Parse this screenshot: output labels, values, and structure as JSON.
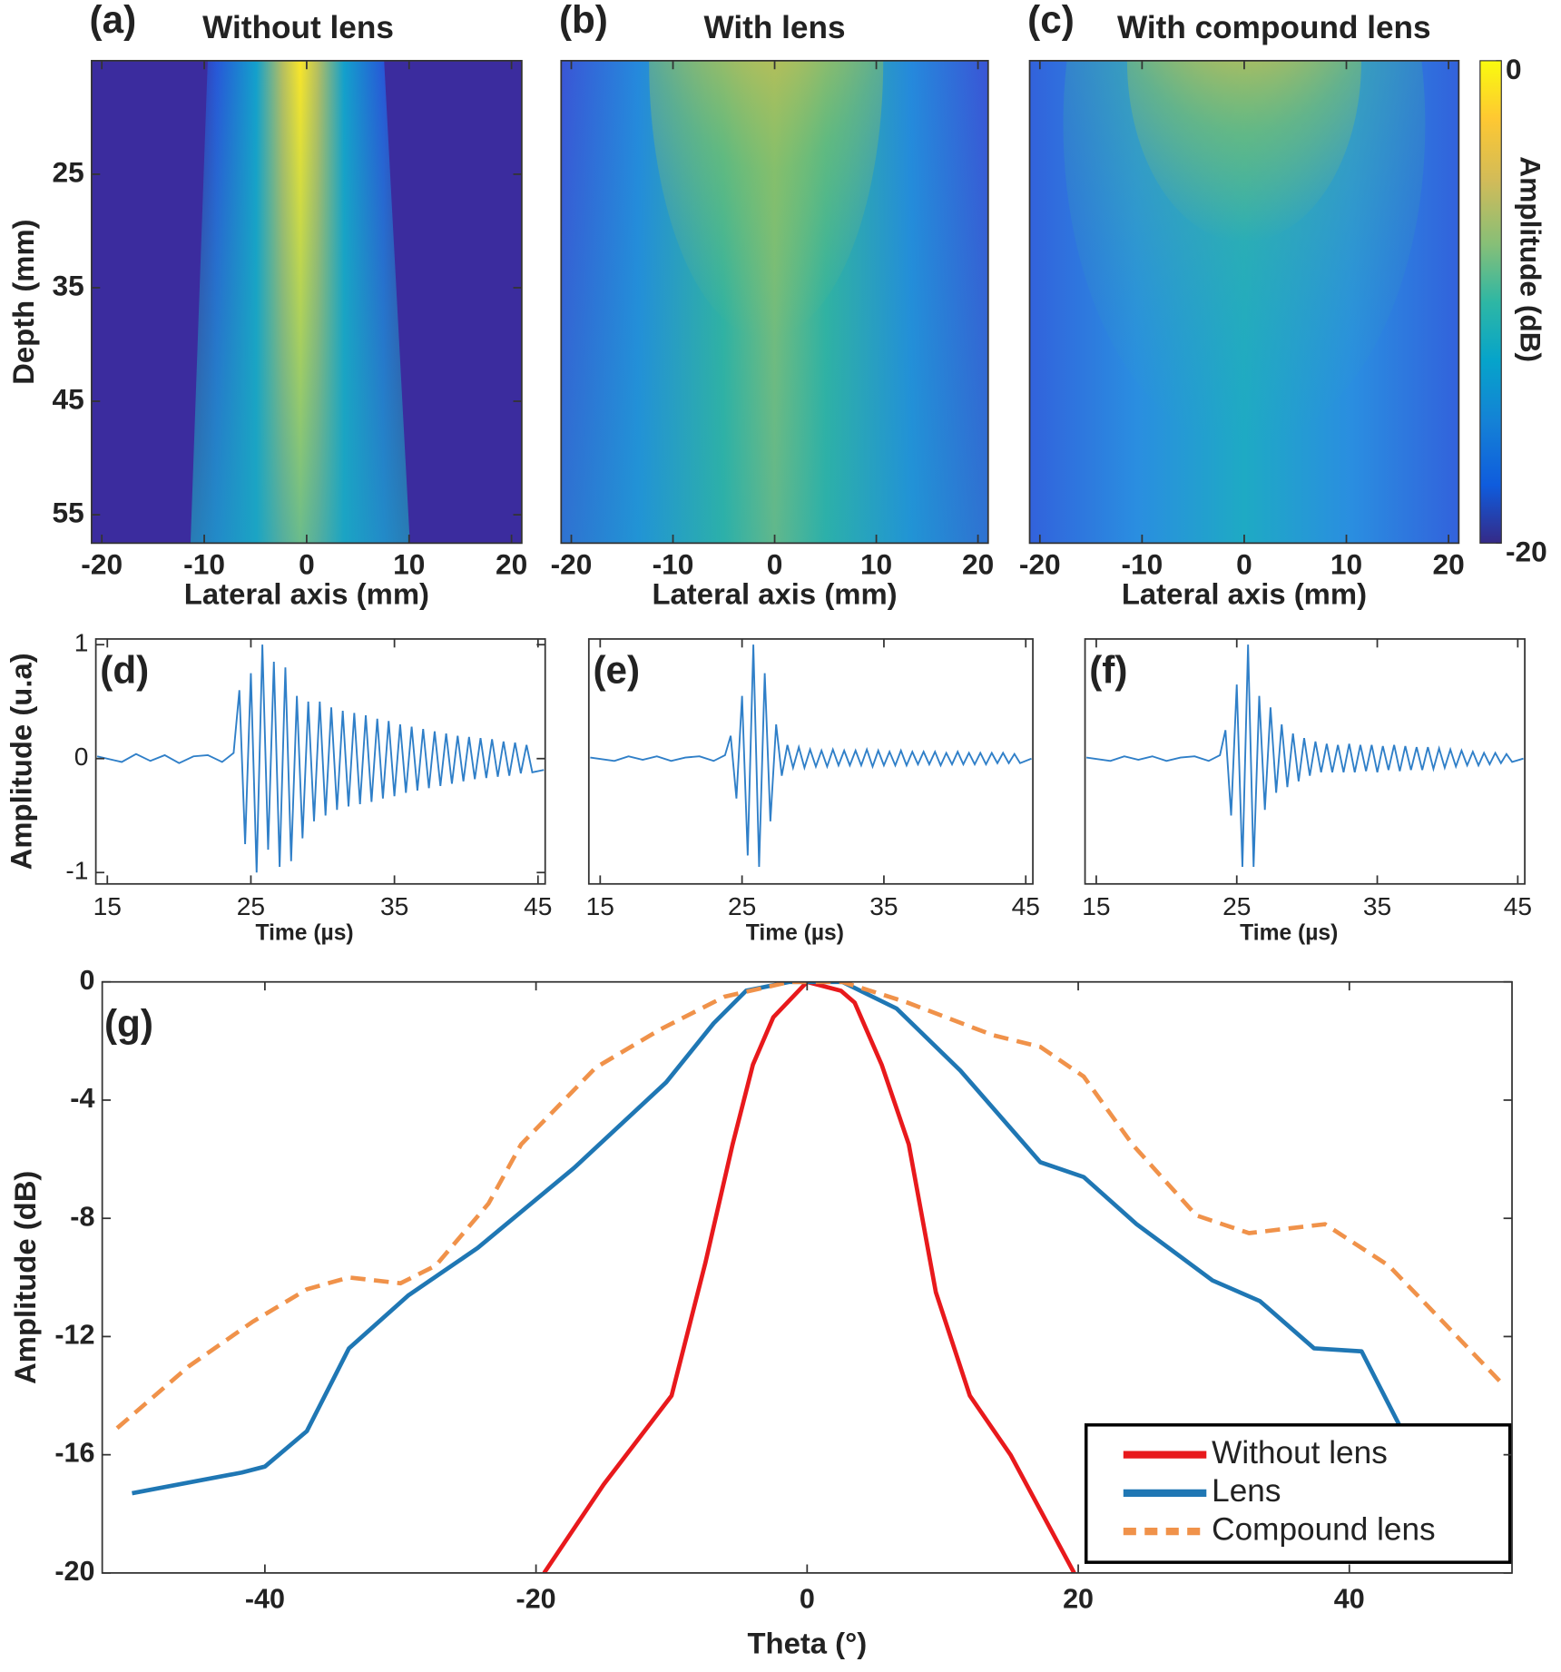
{
  "chart_data": [
    {
      "type": "heatmap",
      "panel_label": "(a)",
      "title": "Without lens",
      "x_label": "Lateral axis (mm)",
      "y_label": "Depth (mm)",
      "xlim": [
        -21,
        21
      ],
      "xticks": [
        -20,
        -10,
        0,
        10,
        20
      ],
      "ylim": [
        15,
        57.5
      ],
      "y_inverted": true,
      "yticks": [
        25,
        35,
        45,
        55
      ]
    },
    {
      "type": "heatmap",
      "panel_label": "(b)",
      "title": "With lens",
      "x_label": "Lateral axis (mm)",
      "xlim": [
        -21,
        21
      ],
      "xticks": [
        -20,
        -10,
        0,
        10,
        20
      ],
      "ylim": [
        15,
        57.5
      ],
      "y_inverted": true
    },
    {
      "type": "heatmap",
      "panel_label": "(c)",
      "title": "With compound lens",
      "x_label": "Lateral axis (mm)",
      "xlim": [
        -21,
        21
      ],
      "xticks": [
        -20,
        -10,
        0,
        10,
        20
      ],
      "ylim": [
        15,
        57.5
      ],
      "y_inverted": true,
      "colorbar": {
        "label": "Amplitude (dB)",
        "lim": [
          -20,
          0
        ],
        "ticks": [
          -20,
          0
        ]
      }
    },
    {
      "type": "line",
      "panel_label": "(d)",
      "x_label": "Time (µs)",
      "y_label": "Amplitude (u.a)",
      "color": "#2f7fc8",
      "xlim": [
        14.2,
        45.5
      ],
      "xticks": [
        15,
        25,
        35,
        45
      ],
      "ylim": [
        -1.1,
        1.05
      ],
      "yticks": [
        -1,
        0,
        1
      ],
      "x": [
        14.3,
        16,
        17,
        18,
        19,
        20,
        21,
        22,
        23,
        23.8,
        24.2,
        24.6,
        25,
        25.4,
        25.8,
        26.2,
        26.6,
        27,
        27.4,
        27.8,
        28.2,
        28.6,
        29,
        29.4,
        29.8,
        30.2,
        30.6,
        31,
        31.4,
        31.8,
        32.2,
        32.6,
        33,
        33.4,
        33.8,
        34.2,
        34.6,
        35,
        35.4,
        35.8,
        36.2,
        36.6,
        37,
        37.4,
        37.8,
        38.2,
        38.6,
        39,
        39.4,
        39.8,
        40.2,
        40.6,
        41,
        41.4,
        41.8,
        42.2,
        42.6,
        43,
        43.4,
        43.8,
        44.2,
        44.6,
        45.4
      ],
      "values": [
        0.02,
        -0.03,
        0.04,
        -0.02,
        0.03,
        -0.04,
        0.02,
        0.03,
        -0.03,
        0.05,
        0.6,
        -0.75,
        0.75,
        -1.0,
        1.0,
        -0.8,
        0.85,
        -0.95,
        0.8,
        -0.9,
        0.55,
        -0.7,
        0.5,
        -0.55,
        0.5,
        -0.5,
        0.45,
        -0.45,
        0.42,
        -0.42,
        0.4,
        -0.4,
        0.38,
        -0.38,
        0.35,
        -0.35,
        0.33,
        -0.33,
        0.3,
        -0.3,
        0.28,
        -0.28,
        0.26,
        -0.26,
        0.24,
        -0.24,
        0.22,
        -0.22,
        0.2,
        -0.2,
        0.19,
        -0.18,
        0.18,
        -0.17,
        0.17,
        -0.16,
        0.15,
        -0.15,
        0.14,
        -0.13,
        0.12,
        -0.12,
        -0.1
      ]
    },
    {
      "type": "line",
      "panel_label": "(e)",
      "x_label": "Time (µs)",
      "color": "#2f7fc8",
      "xlim": [
        14.2,
        45.5
      ],
      "xticks": [
        15,
        25,
        35,
        45
      ],
      "ylim": [
        -1.1,
        1.05
      ],
      "x": [
        14.3,
        16,
        17,
        18,
        19,
        20,
        21,
        22,
        23,
        23.8,
        24.2,
        24.6,
        25,
        25.4,
        25.8,
        26.2,
        26.6,
        27,
        27.4,
        27.8,
        28.2,
        28.6,
        29,
        29.4,
        29.8,
        30.2,
        30.6,
        31,
        31.4,
        31.8,
        32.2,
        32.6,
        33,
        33.4,
        33.8,
        34.2,
        34.6,
        35,
        35.4,
        35.8,
        36.2,
        36.6,
        37,
        37.4,
        37.8,
        38.2,
        38.6,
        39,
        39.4,
        39.8,
        40.2,
        40.6,
        41,
        41.4,
        41.8,
        42.2,
        42.6,
        43,
        43.4,
        43.8,
        44.2,
        44.6,
        45.4
      ],
      "values": [
        0.01,
        -0.02,
        0.02,
        -0.01,
        0.02,
        -0.02,
        0.01,
        0.02,
        -0.02,
        0.03,
        0.2,
        -0.35,
        0.55,
        -0.85,
        1.0,
        -0.95,
        0.75,
        -0.55,
        0.3,
        -0.15,
        0.12,
        -0.08,
        0.1,
        -0.08,
        0.08,
        -0.07,
        0.07,
        -0.07,
        0.08,
        -0.06,
        0.07,
        -0.06,
        0.07,
        -0.06,
        0.08,
        -0.07,
        0.07,
        -0.06,
        0.06,
        -0.06,
        0.07,
        -0.06,
        0.06,
        -0.05,
        0.06,
        -0.05,
        0.06,
        -0.06,
        0.05,
        -0.05,
        0.06,
        -0.05,
        0.05,
        -0.05,
        0.05,
        -0.05,
        0.05,
        -0.04,
        0.05,
        -0.04,
        0.04,
        -0.04,
        0.0
      ]
    },
    {
      "type": "line",
      "panel_label": "(f)",
      "x_label": "Time (µs)",
      "color": "#2f7fc8",
      "xlim": [
        14.2,
        45.5
      ],
      "xticks": [
        15,
        25,
        35,
        45
      ],
      "ylim": [
        -1.1,
        1.05
      ],
      "x": [
        14.3,
        16,
        17,
        18,
        19,
        20,
        21,
        22,
        23,
        23.8,
        24.2,
        24.6,
        25,
        25.4,
        25.8,
        26.2,
        26.6,
        27,
        27.4,
        27.8,
        28.2,
        28.6,
        29,
        29.4,
        29.8,
        30.2,
        30.6,
        31,
        31.4,
        31.8,
        32.2,
        32.6,
        33,
        33.4,
        33.8,
        34.2,
        34.6,
        35,
        35.4,
        35.8,
        36.2,
        36.6,
        37,
        37.4,
        37.8,
        38.2,
        38.6,
        39,
        39.4,
        39.8,
        40.2,
        40.6,
        41,
        41.4,
        41.8,
        42.2,
        42.6,
        43,
        43.4,
        43.8,
        44.2,
        44.6,
        45.4
      ],
      "values": [
        0.01,
        -0.02,
        0.02,
        -0.01,
        0.02,
        -0.02,
        0.01,
        0.02,
        -0.02,
        0.03,
        0.25,
        -0.5,
        0.65,
        -0.95,
        1.0,
        -0.95,
        0.55,
        -0.45,
        0.45,
        -0.3,
        0.3,
        -0.25,
        0.22,
        -0.2,
        0.18,
        -0.15,
        0.15,
        -0.12,
        0.13,
        -0.12,
        0.12,
        -0.12,
        0.13,
        -0.12,
        0.12,
        -0.11,
        0.12,
        -0.12,
        0.11,
        -0.1,
        0.12,
        -0.11,
        0.11,
        -0.1,
        0.1,
        -0.1,
        0.1,
        -0.09,
        0.09,
        -0.08,
        0.08,
        -0.07,
        0.07,
        -0.06,
        0.06,
        -0.06,
        0.05,
        -0.05,
        0.05,
        -0.04,
        0.04,
        -0.03,
        0.0
      ]
    },
    {
      "type": "multiline",
      "panel_label": "(g)",
      "x_label": "Theta (°)",
      "y_label": "Amplitude (dB)",
      "xlim": [
        -52,
        52
      ],
      "xticks": [
        -40,
        -20,
        0,
        20,
        40
      ],
      "ylim": [
        -20,
        0
      ],
      "yticks": [
        0,
        -4,
        -8,
        -12,
        -16,
        -20
      ],
      "legend": "lower right",
      "series": [
        {
          "name": "Without lens",
          "color": "#e8191c",
          "x": [
            -19.4,
            -15,
            -10,
            -7.5,
            -5.5,
            -4,
            -2.5,
            0,
            2.5,
            3.5,
            5.5,
            7.5,
            9.5,
            12,
            15,
            19.7
          ],
          "values": [
            -20,
            -17,
            -14,
            -9.5,
            -5.5,
            -2.8,
            -1.2,
            0,
            -0.3,
            -0.7,
            -2.8,
            -5.5,
            -10.5,
            -14,
            -16,
            -20
          ]
        },
        {
          "name": "Lens",
          "color": "#1f77b4",
          "x": [
            -49.8,
            -41.7,
            -40,
            -36.9,
            -33.8,
            -29.4,
            -24.3,
            -17.2,
            -10.4,
            -6.9,
            -4.5,
            -1.3,
            2.6,
            6.6,
            11.3,
            17.2,
            20.4,
            24.3,
            29.9,
            33.4,
            37.4,
            40.9,
            43.7
          ],
          "values": [
            -17.3,
            -16.6,
            -16.4,
            -15.2,
            -12.4,
            -10.6,
            -9.0,
            -6.3,
            -3.4,
            -1.4,
            -0.3,
            0,
            0,
            -0.9,
            -3.0,
            -6.1,
            -6.6,
            -8.2,
            -10.1,
            -10.8,
            -12.4,
            -12.5,
            -15.0
          ]
        },
        {
          "name": "Compound lens",
          "color": "#f0924a",
          "dash": true,
          "x": [
            -50.9,
            -45.6,
            -40.9,
            -36.9,
            -33.8,
            -30,
            -27.4,
            -23.5,
            -21.1,
            -15.6,
            -10.8,
            -6.1,
            -1.3,
            2.6,
            7.4,
            13.7,
            17.2,
            20.4,
            24,
            28.7,
            32.6,
            38.2,
            42.9,
            46.9,
            51.5
          ],
          "values": [
            -15.1,
            -13.0,
            -11.5,
            -10.4,
            -10.0,
            -10.2,
            -9.6,
            -7.5,
            -5.5,
            -2.9,
            -1.6,
            -0.5,
            0,
            0,
            -0.7,
            -1.8,
            -2.2,
            -3.2,
            -5.5,
            -7.9,
            -8.5,
            -8.2,
            -9.6,
            -11.5,
            -13.7
          ]
        }
      ]
    }
  ]
}
